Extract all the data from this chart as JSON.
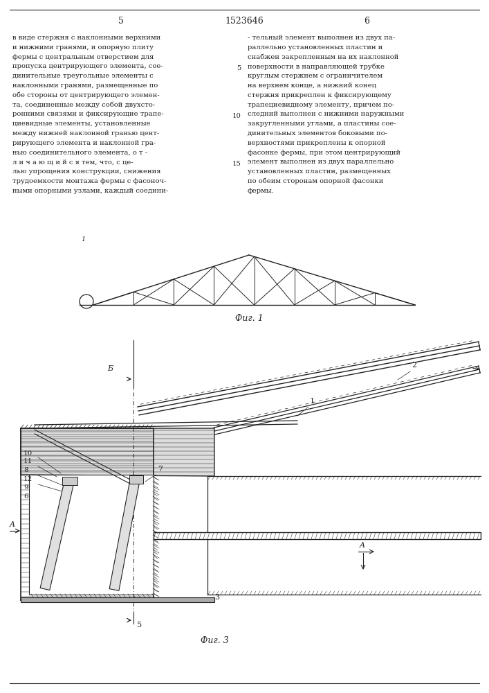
{
  "bg_color": "#ffffff",
  "line_color": "#222222",
  "text_color": "#222222",
  "page_title": "1523646",
  "col_left": "5",
  "col_right": "6",
  "text_left": "в виде стержня с наклонными верхними\nи нижними гранями, и опорную плиту\nфермы с центральным отверстием для\nпропуска центрирующего элемента, сое-\nдинительные треугольные элементы с\nнаклонными гранями, размещенные по\nобе стороны от центрирующего элемен-\nта, соединенные между собой двухсто-\nронними связями и фиксирующие трапе-\nциевидные элементы, установленные\nмежду нижней наклонной гранью цент-\nрирующего элемента и наклонной гра-\nнью соединительного элемента, о т -\nл и ч а ю щ и й с я тем, что, с це-\nлью упрощения конструкции, снижения\nтрудоемкости монтажа фермы с фасоноч-\nными опорными узлами, каждый соедини-",
  "text_right": "- тельный элемент выполнен из двух па-\nраллельно установленных пластин и\nснабжен закрепленным на их наклонной\nповерхности в направляющей трубке\nкруглым стержнем с ограничителем\nна верхнем конце, а нижний конец\nстержня прикреплен к фиксирующему\nтрапециевидному элементу, причем по-\nследний выполнен с нижними наружными\nзакругленными углами, а пластины сое-\nдинительных элементов боковыми по-\nверхностями прикреплены к опорной\nфасонке фермы, при этом центрирующий\nэлемент выполнен из двух параллельно\nустановленных пластин, размещенных\nпо обеим сторонам опорной фасонки\nфермы.",
  "fig1_caption": "Фиг. 1",
  "fig3_caption": "Фиг. 3",
  "line_nums": [
    "5",
    "10",
    "15"
  ],
  "line_num_rows": [
    4,
    9,
    14
  ]
}
